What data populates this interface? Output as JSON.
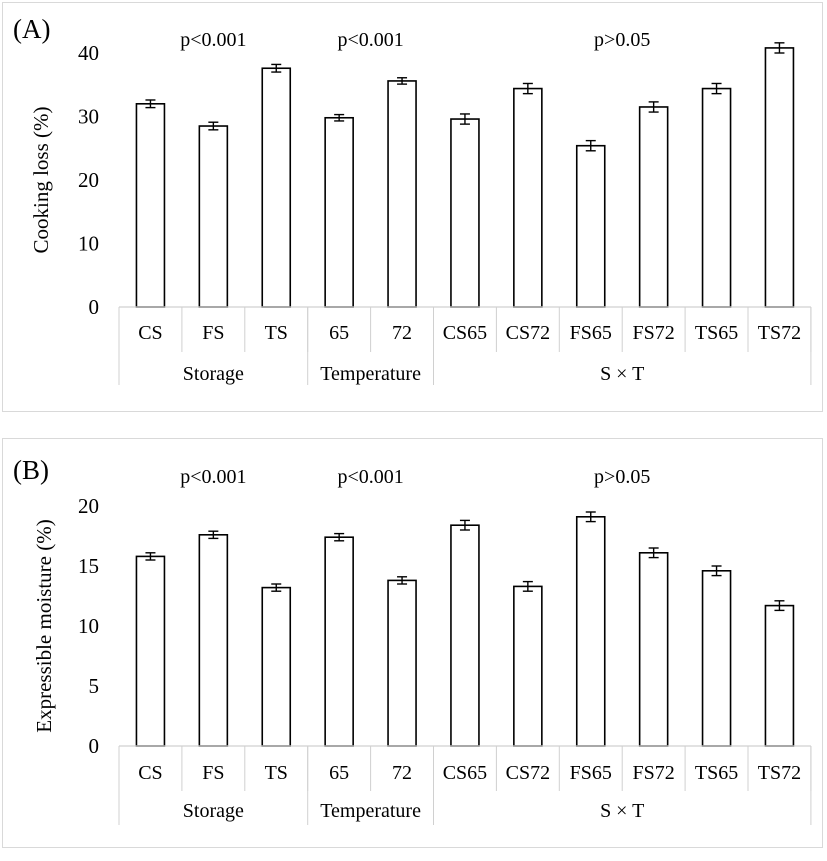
{
  "chart_data": [
    {
      "type": "bar",
      "panel_label": "(A)",
      "title": "",
      "ylabel": "Cooking loss (%)",
      "xlabel": "",
      "ylim": [
        0,
        40
      ],
      "yticks": [
        0,
        10,
        20,
        30,
        40
      ],
      "grid": false,
      "categories": [
        "CS",
        "FS",
        "TS",
        "65",
        "72",
        "CS65",
        "CS72",
        "FS65",
        "FS72",
        "TS65",
        "TS72"
      ],
      "values": [
        32.0,
        28.5,
        37.6,
        29.8,
        35.6,
        29.6,
        34.4,
        25.4,
        31.5,
        34.4,
        40.8
      ],
      "errors": [
        0.6,
        0.6,
        0.6,
        0.5,
        0.5,
        0.8,
        0.8,
        0.8,
        0.8,
        0.8,
        0.8
      ],
      "groups": [
        {
          "label": "Storage",
          "start": 0,
          "end": 2
        },
        {
          "label": "Temperature",
          "start": 3,
          "end": 4
        },
        {
          "label": "S × T",
          "start": 5,
          "end": 10
        }
      ],
      "annotations": [
        {
          "text": "p<0.001",
          "group": 0
        },
        {
          "text": "p<0.001",
          "group": 1
        },
        {
          "text": "p>0.05",
          "group": 2
        }
      ]
    },
    {
      "type": "bar",
      "panel_label": "(B)",
      "title": "",
      "ylabel": "Expressible moisture (%)",
      "xlabel": "",
      "ylim": [
        0,
        20
      ],
      "yticks": [
        0,
        5,
        10,
        15,
        20
      ],
      "grid": false,
      "categories": [
        "CS",
        "FS",
        "TS",
        "65",
        "72",
        "CS65",
        "CS72",
        "FS65",
        "FS72",
        "TS65",
        "TS72"
      ],
      "values": [
        15.8,
        17.6,
        13.2,
        17.4,
        13.8,
        18.4,
        13.3,
        19.1,
        16.1,
        14.6,
        11.7
      ],
      "errors": [
        0.3,
        0.3,
        0.3,
        0.3,
        0.3,
        0.4,
        0.4,
        0.4,
        0.4,
        0.4,
        0.4
      ],
      "groups": [
        {
          "label": "Storage",
          "start": 0,
          "end": 2
        },
        {
          "label": "Temperature",
          "start": 3,
          "end": 4
        },
        {
          "label": "S × T",
          "start": 5,
          "end": 10
        }
      ],
      "annotations": [
        {
          "text": "p<0.001",
          "group": 0
        },
        {
          "text": "p<0.001",
          "group": 1
        },
        {
          "text": "p>0.05",
          "group": 2
        }
      ]
    }
  ]
}
